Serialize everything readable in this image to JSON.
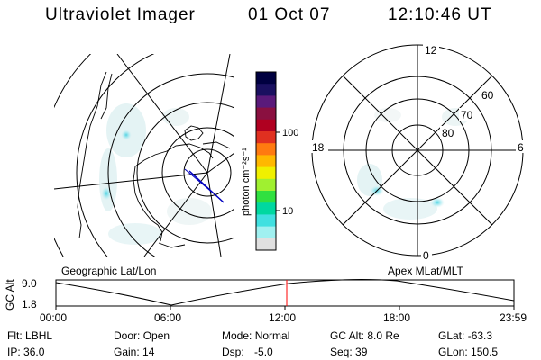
{
  "header": {
    "instrument": "Ultraviolet Imager",
    "date": "01 Oct 07",
    "time": "12:10:46 UT"
  },
  "colorbar": {
    "unit_label": "photon cm⁻²s⁻¹",
    "ticks": [
      "100",
      "10"
    ],
    "colors": [
      "#000040",
      "#1a1060",
      "#5a1a7a",
      "#8a1040",
      "#b00020",
      "#e03020",
      "#ff7a10",
      "#ffb800",
      "#f0f000",
      "#a0f030",
      "#30e040",
      "#00d8a0",
      "#40e0e0",
      "#a0f0f0",
      "#e0e0e0"
    ]
  },
  "left_map": {
    "caption": "Geographic Lat/Lon"
  },
  "right_map": {
    "caption": "Apex  MLat/MLT",
    "mlt_labels": [
      "12",
      "18",
      "6",
      "0"
    ],
    "mlat_labels": [
      "60",
      "70",
      "80"
    ]
  },
  "timeline": {
    "axis_label": "GC Alt",
    "y_ticks": [
      "9.0",
      "1.8"
    ],
    "x_ticks": [
      "00:00",
      "06:00",
      "12:00",
      "18:00",
      "23:59"
    ],
    "current_marker_color": "#ff0000"
  },
  "status": {
    "filter": {
      "label": "Flt:",
      "value": "LBHL"
    },
    "door": {
      "label": "Door:",
      "value": "Open"
    },
    "mode": {
      "label": "Mode:",
      "value": "Normal"
    },
    "gc_alt": {
      "label": "GC Alt:",
      "value": "8.0 Re"
    },
    "glat": {
      "label": "GLat:",
      "value": "-63.3"
    },
    "ip": {
      "label": "IP:",
      "value": "36.0"
    },
    "gain": {
      "label": "Gain:",
      "value": "14"
    },
    "dsp": {
      "label": "Dsp:",
      "value": "-5.0"
    },
    "seq": {
      "label": "Seq:",
      "value": "39"
    },
    "glon": {
      "label": "GLon:",
      "value": "150.5"
    }
  }
}
